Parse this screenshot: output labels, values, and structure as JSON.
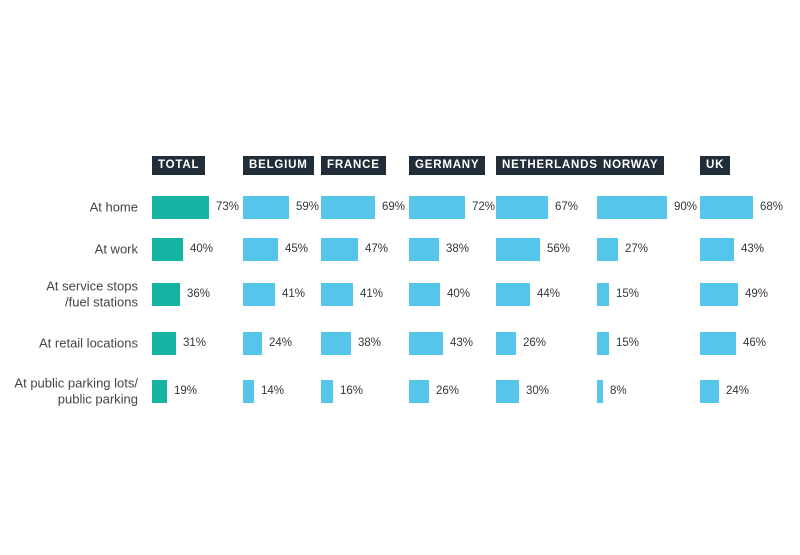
{
  "chart_data": {
    "type": "bar",
    "orientation": "horizontal",
    "title": "",
    "value_unit": "%",
    "value_range": [
      0,
      100
    ],
    "grid": false,
    "legend_position": "none",
    "categories": [
      "At home",
      "At work",
      "At service stops\n/fuel stations",
      "At retail locations",
      "At public parking lots/\npublic parking"
    ],
    "series": [
      {
        "name": "TOTAL",
        "values": [
          73,
          40,
          36,
          31,
          19
        ]
      },
      {
        "name": "BELGIUM",
        "values": [
          59,
          45,
          41,
          24,
          14
        ]
      },
      {
        "name": "FRANCE",
        "values": [
          69,
          47,
          41,
          38,
          16
        ]
      },
      {
        "name": "GERMANY",
        "values": [
          72,
          38,
          40,
          43,
          26
        ]
      },
      {
        "name": "NETHERLANDS",
        "values": [
          67,
          56,
          44,
          26,
          30
        ]
      },
      {
        "name": "NORWAY",
        "values": [
          90,
          27,
          15,
          15,
          8
        ]
      },
      {
        "name": "UK",
        "values": [
          68,
          43,
          49,
          46,
          24
        ]
      }
    ]
  },
  "colors": {
    "total_bar": "#14b3a2",
    "country_bar": "#55c5e9",
    "header_bg": "#222d3a",
    "header_text": "#ffffff",
    "row_label": "#41464b",
    "value_label": "#32373c",
    "background": "#ffffff"
  }
}
